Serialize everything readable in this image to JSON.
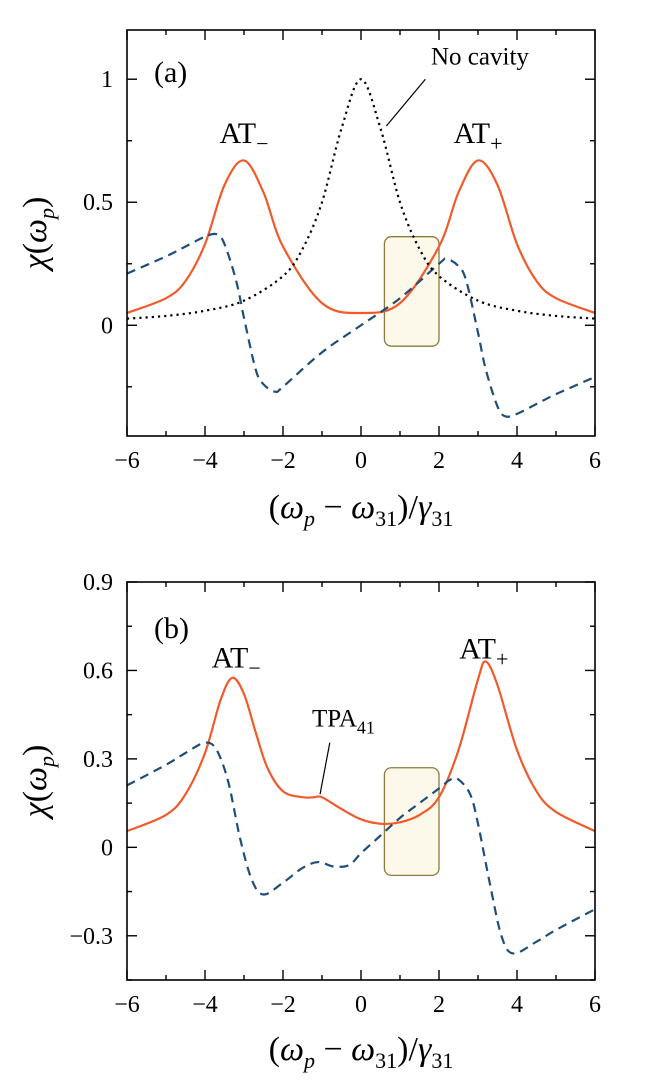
{
  "chart_data": [
    {
      "type": "line",
      "panel_label": "(a)",
      "xlabel": "(ωp − ω31)/γ31",
      "ylabel": "χ(ωp)",
      "xlim": [
        -6,
        6
      ],
      "ylim": [
        -0.45,
        1.2
      ],
      "xticks": [
        "−6",
        "−4",
        "−2",
        "0",
        "2",
        "4",
        "6"
      ],
      "yticks": [
        {
          "value": 0,
          "label": "0"
        },
        {
          "value": 0.5,
          "label": "0.5"
        },
        {
          "value": 1,
          "label": "1"
        }
      ],
      "annotations": [
        {
          "text": "AT",
          "sub": "−",
          "x": -3.0,
          "y": 0.74
        },
        {
          "text": "AT",
          "sub": "+",
          "x": 3.0,
          "y": 0.74
        },
        {
          "text": "No cavity",
          "x": 3.05,
          "y": 1.06
        }
      ],
      "highlight_box": {
        "x0": 0.6,
        "x1": 2.0,
        "y0": -0.085,
        "y1": 0.36
      },
      "series": [
        {
          "style": "solid",
          "color": "#f15a2b",
          "x": [
            -6,
            -5,
            -4.5,
            -4,
            -3.5,
            -3,
            -2.5,
            -2,
            -1,
            0,
            1,
            2,
            2.5,
            3,
            3.5,
            4,
            4.5,
            5,
            6
          ],
          "y": [
            0.05,
            0.11,
            0.18,
            0.33,
            0.57,
            0.67,
            0.54,
            0.32,
            0.09,
            0.05,
            0.09,
            0.32,
            0.54,
            0.67,
            0.57,
            0.33,
            0.18,
            0.11,
            0.05
          ]
        },
        {
          "style": "dashed",
          "color": "#1f4e79",
          "x": [
            -6,
            -5,
            -4.5,
            -4,
            -3.7,
            -3.5,
            -3.2,
            -3,
            -2.7,
            -2.5,
            -2.2,
            -2,
            -1,
            0,
            1,
            2,
            2.2,
            2.5,
            2.7,
            3,
            3.2,
            3.5,
            3.7,
            4,
            4.5,
            5,
            6
          ],
          "y": [
            0.21,
            0.28,
            0.32,
            0.36,
            0.37,
            0.33,
            0.18,
            0.03,
            -0.18,
            -0.24,
            -0.27,
            -0.25,
            -0.11,
            0.0,
            0.11,
            0.25,
            0.27,
            0.24,
            0.18,
            -0.03,
            -0.18,
            -0.33,
            -0.37,
            -0.36,
            -0.32,
            -0.28,
            -0.21
          ]
        },
        {
          "style": "dotted",
          "color": "#000000",
          "x": [
            -6,
            -5,
            -4,
            -3,
            -2,
            -1.5,
            -1,
            -0.5,
            0,
            0.5,
            1,
            1.5,
            2,
            3,
            4,
            5,
            6
          ],
          "y": [
            0.027,
            0.038,
            0.059,
            0.1,
            0.2,
            0.31,
            0.5,
            0.8,
            1.0,
            0.8,
            0.5,
            0.31,
            0.2,
            0.1,
            0.059,
            0.038,
            0.027
          ]
        }
      ]
    },
    {
      "type": "line",
      "panel_label": "(b)",
      "xlabel": "(ωp − ω31)/γ31",
      "ylabel": "χ(ωp)",
      "xlim": [
        -6,
        6
      ],
      "ylim": [
        -0.45,
        0.9
      ],
      "xticks": [
        "−6",
        "−4",
        "−2",
        "0",
        "2",
        "4",
        "6"
      ],
      "yticks": [
        {
          "value": -0.3,
          "label": "−0.3"
        },
        {
          "value": 0,
          "label": "0"
        },
        {
          "value": 0.3,
          "label": "0.3"
        },
        {
          "value": 0.6,
          "label": "0.6"
        },
        {
          "value": 0.9,
          "label": "0.9"
        }
      ],
      "annotations": [
        {
          "text": "AT",
          "sub": "−",
          "x": -3.2,
          "y": 0.61
        },
        {
          "text": "AT",
          "sub": "+",
          "x": 3.15,
          "y": 0.64
        },
        {
          "text": "TPA",
          "sub": "41",
          "x": -0.45,
          "y": 0.41
        }
      ],
      "highlight_box": {
        "x0": 0.6,
        "x1": 2.0,
        "y0": -0.095,
        "y1": 0.27
      },
      "series": [
        {
          "style": "solid",
          "color": "#f15a2b",
          "x": [
            -6,
            -5,
            -4.5,
            -4,
            -3.6,
            -3.3,
            -3,
            -2.7,
            -2.4,
            -2,
            -1.5,
            -1.2,
            -1,
            -0.5,
            0,
            0.5,
            1,
            1.5,
            2,
            2.5,
            3,
            3.2,
            3.5,
            4,
            4.5,
            5,
            6
          ],
          "y": [
            0.055,
            0.11,
            0.18,
            0.32,
            0.5,
            0.575,
            0.52,
            0.39,
            0.27,
            0.19,
            0.17,
            0.17,
            0.17,
            0.13,
            0.095,
            0.08,
            0.085,
            0.11,
            0.17,
            0.33,
            0.57,
            0.63,
            0.55,
            0.33,
            0.19,
            0.12,
            0.055
          ]
        },
        {
          "style": "dashed",
          "color": "#1f4e79",
          "x": [
            -6,
            -5,
            -4.5,
            -4,
            -3.7,
            -3.4,
            -3.1,
            -2.8,
            -2.5,
            -2,
            -1.5,
            -1.1,
            -0.7,
            -0.3,
            0,
            0.5,
            1,
            1.5,
            2,
            2.3,
            2.5,
            2.8,
            3,
            3.3,
            3.6,
            3.9,
            4.5,
            5,
            6
          ],
          "y": [
            0.21,
            0.28,
            0.32,
            0.355,
            0.33,
            0.22,
            0.03,
            -0.11,
            -0.16,
            -0.12,
            -0.07,
            -0.05,
            -0.065,
            -0.06,
            -0.02,
            0.04,
            0.1,
            0.15,
            0.2,
            0.23,
            0.23,
            0.18,
            0.08,
            -0.12,
            -0.3,
            -0.36,
            -0.32,
            -0.28,
            -0.21
          ]
        }
      ]
    }
  ]
}
